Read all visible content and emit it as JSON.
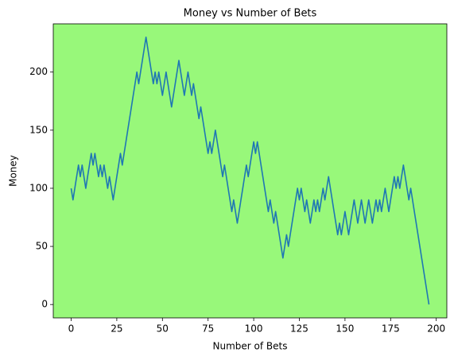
{
  "chart_data": {
    "type": "line",
    "title": "Money vs Number of Bets",
    "x_label": "Number of Bets",
    "y_label": "Money",
    "background": "#98f87a",
    "x": [
      0,
      1,
      2,
      3,
      4,
      5,
      6,
      7,
      8,
      9,
      10,
      11,
      12,
      13,
      14,
      15,
      16,
      17,
      18,
      19,
      20,
      21,
      22,
      23,
      24,
      25,
      26,
      27,
      28,
      29,
      30,
      31,
      32,
      33,
      34,
      35,
      36,
      37,
      38,
      39,
      40,
      41,
      42,
      43,
      44,
      45,
      46,
      47,
      48,
      49,
      50,
      51,
      52,
      53,
      54,
      55,
      56,
      57,
      58,
      59,
      60,
      61,
      62,
      63,
      64,
      65,
      66,
      67,
      68,
      69,
      70,
      71,
      72,
      73,
      74,
      75,
      76,
      77,
      78,
      79,
      80,
      81,
      82,
      83,
      84,
      85,
      86,
      87,
      88,
      89,
      90,
      91,
      92,
      93,
      94,
      95,
      96,
      97,
      98,
      99,
      100,
      101,
      102,
      103,
      104,
      105,
      106,
      107,
      108,
      109,
      110,
      111,
      112,
      113,
      114,
      115,
      116,
      117,
      118,
      119,
      120,
      121,
      122,
      123,
      124,
      125,
      126,
      127,
      128,
      129,
      130,
      131,
      132,
      133,
      134,
      135,
      136,
      137,
      138,
      139,
      140,
      141,
      142,
      143,
      144,
      145,
      146,
      147,
      148,
      149,
      150,
      151,
      152,
      153,
      154,
      155,
      156,
      157,
      158,
      159,
      160,
      161,
      162,
      163,
      164,
      165,
      166,
      167,
      168,
      169,
      170,
      171,
      172,
      173,
      174,
      175,
      176,
      177,
      178,
      179,
      180,
      181,
      182,
      183,
      184,
      185,
      186,
      187,
      188,
      189,
      190,
      191,
      192,
      193,
      194,
      195,
      196
    ],
    "series": [
      {
        "color": "#1f77b4",
        "values": [
          100,
          90,
          100,
          110,
          120,
          110,
          120,
          110,
          100,
          110,
          120,
          130,
          120,
          130,
          120,
          110,
          120,
          110,
          120,
          110,
          100,
          110,
          100,
          90,
          100,
          110,
          120,
          130,
          120,
          130,
          140,
          150,
          160,
          170,
          180,
          190,
          200,
          190,
          200,
          210,
          220,
          230,
          220,
          210,
          200,
          190,
          200,
          190,
          200,
          190,
          180,
          190,
          200,
          190,
          180,
          170,
          180,
          190,
          200,
          210,
          200,
          190,
          180,
          190,
          200,
          190,
          180,
          190,
          180,
          170,
          160,
          170,
          160,
          150,
          140,
          130,
          140,
          130,
          140,
          150,
          140,
          130,
          120,
          110,
          120,
          110,
          100,
          90,
          80,
          90,
          80,
          70,
          80,
          90,
          100,
          110,
          120,
          110,
          120,
          130,
          140,
          130,
          140,
          130,
          120,
          110,
          100,
          90,
          80,
          90,
          80,
          70,
          80,
          70,
          60,
          50,
          40,
          50,
          60,
          50,
          60,
          70,
          80,
          90,
          100,
          90,
          100,
          90,
          80,
          90,
          80,
          70,
          80,
          90,
          80,
          90,
          80,
          90,
          100,
          90,
          100,
          110,
          100,
          90,
          80,
          70,
          60,
          70,
          60,
          70,
          80,
          70,
          60,
          70,
          80,
          90,
          80,
          70,
          80,
          90,
          80,
          70,
          80,
          90,
          80,
          70,
          80,
          90,
          80,
          90,
          80,
          90,
          100,
          90,
          80,
          90,
          100,
          110,
          100,
          110,
          100,
          110,
          120,
          110,
          100,
          90,
          100,
          90,
          80,
          70,
          60,
          50,
          40,
          30,
          20,
          10,
          0
        ]
      }
    ],
    "xlim": [
      -9.8,
      205.8
    ],
    "xticks": [
      0,
      25,
      50,
      75,
      100,
      125,
      150,
      175,
      200
    ],
    "ylim": [
      -11.5,
      241.5
    ],
    "yticks": [
      0,
      50,
      100,
      150,
      200
    ]
  }
}
